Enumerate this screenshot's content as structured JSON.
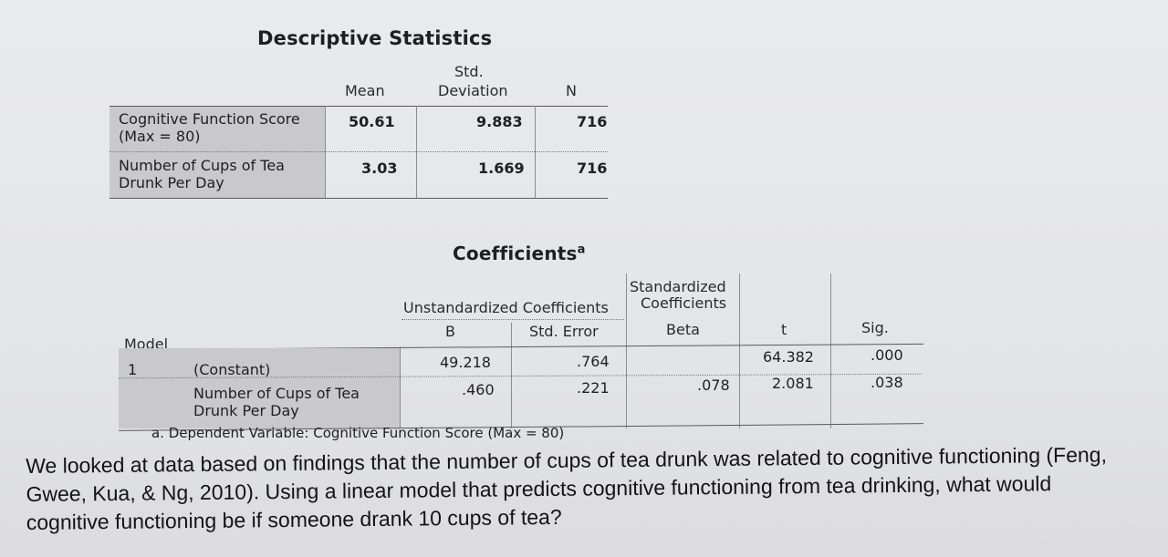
{
  "descriptive": {
    "title": "Descriptive Statistics",
    "headers": [
      "Mean",
      "Std. Deviation",
      "N"
    ],
    "std_top": "Std.",
    "std_bottom": "Deviation",
    "rows": [
      {
        "label_1": "Cognitive Function Score",
        "label_2": "(Max = 80)",
        "mean": "50.61",
        "sd": "9.883",
        "n": "716"
      },
      {
        "label_1": "Number of Cups of Tea",
        "label_2": "Drunk Per Day",
        "mean": "3.03",
        "sd": "1.669",
        "n": "716"
      }
    ]
  },
  "coefficients": {
    "title": "Coefficients",
    "title_sup": "a",
    "group_unstd": "Unstandardized Coefficients",
    "group_std_1": "Standardized",
    "group_std_2": "Coefficients",
    "col_b": "B",
    "col_se": "Std. Error",
    "col_beta": "Beta",
    "col_t": "t",
    "col_sig": "Sig.",
    "model_label": "Model",
    "model_num": "1",
    "rows": [
      {
        "label_1": "(Constant)",
        "label_2": "",
        "b": "49.218",
        "se": ".764",
        "beta": "",
        "t": "64.382",
        "sig": ".000"
      },
      {
        "label_1": "Number of Cups of Tea",
        "label_2": "Drunk Per Day",
        "b": ".460",
        "se": ".221",
        "beta": ".078",
        "t": "2.081",
        "sig": ".038"
      }
    ],
    "footnote": "a. Dependent Variable: Cognitive Function Score (Max = 80)"
  },
  "question": "We looked at data based on findings that the number of cups of tea drunk was related to cognitive functioning (Feng, Gwee, Kua, & Ng, 2010). Using a linear model that predicts cognitive functioning from tea drinking, what would cognitive functioning be if someone drank 10 cups of tea?"
}
